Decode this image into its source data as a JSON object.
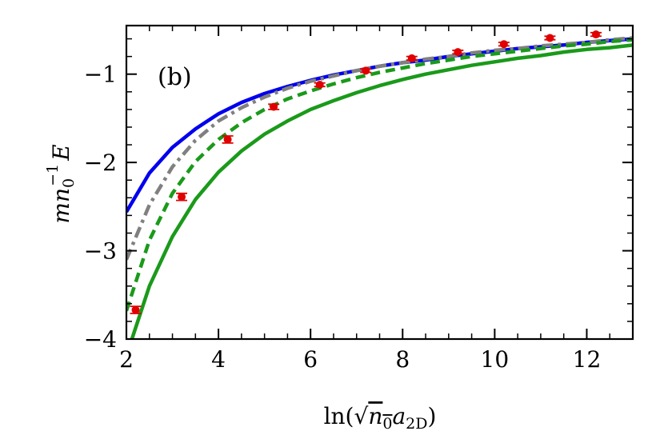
{
  "chart_data": {
    "type": "line",
    "panel_label": "(b)",
    "xlabel": {
      "prefix": "ln(",
      "sqrt": "√",
      "n": "n",
      "n_sub": "0",
      "a": "a",
      "a_sub": "2D",
      "suffix": ")"
    },
    "ylabel": {
      "base": "mn",
      "sub": "0",
      "sup": "−1",
      "E": "E"
    },
    "xlim": [
      2,
      13
    ],
    "ylim": [
      -4,
      -0.45
    ],
    "xticks": [
      2,
      4,
      6,
      8,
      10,
      12
    ],
    "xtick_labels": [
      "2",
      "4",
      "6",
      "8",
      "10",
      "12"
    ],
    "yticks": [
      -4,
      -3,
      -2,
      -1
    ],
    "ytick_labels": [
      "−4",
      "−3",
      "−2",
      "−1"
    ],
    "grid": false,
    "series": [
      {
        "style": "solid",
        "color": "#0000ee",
        "x": [
          2,
          2.5,
          3,
          3.5,
          4,
          4.5,
          5,
          5.5,
          6,
          6.5,
          7,
          7.5,
          8,
          8.5,
          9,
          9.5,
          10,
          10.5,
          11,
          11.5,
          12,
          12.5,
          13
        ],
        "y": [
          -2.56,
          -2.12,
          -1.83,
          -1.62,
          -1.45,
          -1.32,
          -1.22,
          -1.14,
          -1.07,
          -1.01,
          -0.96,
          -0.91,
          -0.87,
          -0.84,
          -0.8,
          -0.77,
          -0.74,
          -0.71,
          -0.69,
          -0.67,
          -0.64,
          -0.62,
          -0.6
        ]
      },
      {
        "style": "dashdot",
        "color": "#808080",
        "x": [
          2,
          2.5,
          3,
          3.5,
          4,
          4.5,
          5,
          5.5,
          6,
          6.5,
          7,
          7.5,
          8,
          8.5,
          9,
          9.5,
          10,
          10.5,
          11,
          11.5,
          12,
          12.5,
          13
        ],
        "y": [
          -3.1,
          -2.48,
          -2.05,
          -1.75,
          -1.53,
          -1.38,
          -1.26,
          -1.16,
          -1.08,
          -1.02,
          -0.96,
          -0.91,
          -0.87,
          -0.83,
          -0.8,
          -0.76,
          -0.73,
          -0.71,
          -0.68,
          -0.66,
          -0.64,
          -0.61,
          -0.59
        ]
      },
      {
        "style": "dashed",
        "color": "#1a9a1a",
        "x": [
          2,
          2.5,
          3,
          3.5,
          4,
          4.5,
          5,
          5.5,
          6,
          6.5,
          7,
          7.5,
          8,
          8.5,
          9,
          9.5,
          10,
          10.5,
          11,
          11.5,
          12,
          12.5,
          13
        ],
        "y": [
          -3.68,
          -2.88,
          -2.35,
          -1.99,
          -1.74,
          -1.55,
          -1.4,
          -1.28,
          -1.19,
          -1.11,
          -1.04,
          -0.98,
          -0.93,
          -0.88,
          -0.84,
          -0.8,
          -0.77,
          -0.74,
          -0.71,
          -0.68,
          -0.66,
          -0.63,
          -0.61
        ]
      },
      {
        "style": "solid",
        "color": "#1a9a1a",
        "x": [
          2.12,
          2.5,
          3,
          3.5,
          4,
          4.5,
          5,
          5.5,
          6,
          6.5,
          7,
          7.5,
          8,
          8.5,
          9,
          9.5,
          10,
          10.5,
          11,
          11.5,
          12,
          12.5,
          13
        ],
        "y": [
          -4.0,
          -3.4,
          -2.84,
          -2.42,
          -2.11,
          -1.87,
          -1.68,
          -1.53,
          -1.4,
          -1.3,
          -1.21,
          -1.13,
          -1.06,
          -1.0,
          -0.95,
          -0.9,
          -0.86,
          -0.82,
          -0.79,
          -0.75,
          -0.72,
          -0.7,
          -0.67
        ]
      }
    ],
    "points": {
      "color": "#e00000",
      "x": [
        2.2,
        3.2,
        4.2,
        5.2,
        6.2,
        7.2,
        8.2,
        9.2,
        10.2,
        11.2,
        12.2
      ],
      "y": [
        -3.67,
        -2.39,
        -1.74,
        -1.37,
        -1.12,
        -0.96,
        -0.82,
        -0.75,
        -0.66,
        -0.59,
        -0.55
      ],
      "err": [
        0.04,
        0.04,
        0.04,
        0.03,
        0.02,
        0.02,
        0.02,
        0.02,
        0.02,
        0.02,
        0.02
      ]
    }
  }
}
